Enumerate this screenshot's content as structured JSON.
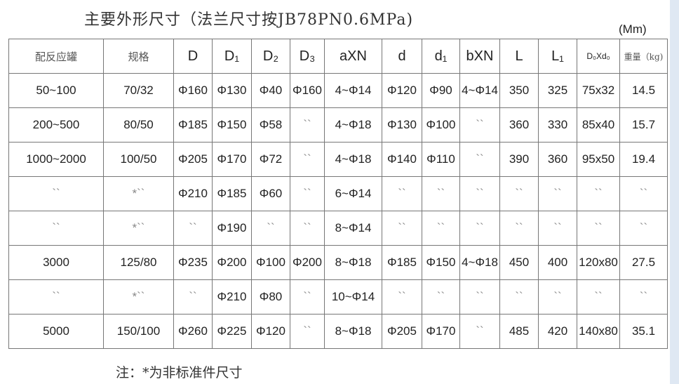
{
  "title": "主要外形尺寸（法兰尺寸按JB78PN0.6MPa)",
  "unit": "(Mm)",
  "headers": [
    "配反应罐",
    "规格",
    "D",
    "D₁",
    "D₂",
    "D₃",
    "aXN",
    "d",
    "d₁",
    "bXN",
    "L",
    "L₁",
    "D₀Xd₀",
    "重量（kg)"
  ],
  "rows": [
    [
      "50~100",
      "70/32",
      "Φ160",
      "Φ130",
      "Φ40",
      "Φ160",
      "4~Φ14",
      "Φ120",
      "Φ90",
      "4~Φ14",
      "350",
      "325",
      "75x32",
      "14.5"
    ],
    [
      "200~500",
      "80/50",
      "Φ185",
      "Φ150",
      "Φ58",
      "``",
      "4~Φ18",
      "Φ130",
      "Φ100",
      "``",
      "360",
      "330",
      "85x40",
      "15.7"
    ],
    [
      "1000~2000",
      "100/50",
      "Φ205",
      "Φ170",
      "Φ72",
      "``",
      "4~Φ18",
      "Φ140",
      "Φ110",
      "``",
      "390",
      "360",
      "95x50",
      "19.4"
    ],
    [
      "``",
      "*``",
      "Φ210",
      "Φ185",
      "Φ60",
      "``",
      "6~Φ14",
      "``",
      "``",
      "``",
      "``",
      "``",
      "``",
      "``"
    ],
    [
      "``",
      "*``",
      "``",
      "Φ190",
      "``",
      "``",
      "8~Φ14",
      "``",
      "``",
      "``",
      "``",
      "``",
      "``",
      "``"
    ],
    [
      "3000",
      "125/80",
      "Φ235",
      "Φ200",
      "Φ100",
      "Φ200",
      "8~Φ18",
      "Φ185",
      "Φ150",
      "4~Φ18",
      "450",
      "400",
      "120x80",
      "27.5"
    ],
    [
      "``",
      "*``",
      "``",
      "Φ210",
      "Φ80",
      "``",
      "10~Φ14",
      "``",
      "``",
      "``",
      "``",
      "``",
      "``",
      "``"
    ],
    [
      "5000",
      "150/100",
      "Φ260",
      "Φ225",
      "Φ120",
      "``",
      "8~Φ18",
      "Φ205",
      "Φ170",
      "``",
      "485",
      "420",
      "140x80",
      "35.1"
    ]
  ],
  "note": "注：*为非标准件尺寸"
}
